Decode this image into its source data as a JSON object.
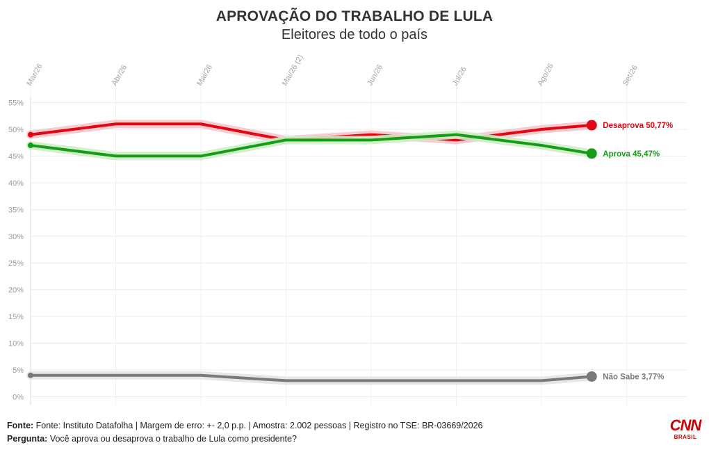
{
  "title": "APROVAÇÃO DO TRABALHO DE LULA",
  "subtitle": "Eleitores de todo o país",
  "footer": {
    "source_label": "Fonte:",
    "source_text": " Fonte: Instituto Datafolha | Margem de erro: +- 2,0 p.p. | Amostra: 2.002 pessoas | Registro no TSE: BR-03669/2026",
    "question_label": "Pergunta:",
    "question_text": " Você aprova ou desaprova o trabalho de Lula como presidente?"
  },
  "logo": {
    "main": "CNN",
    "sub": "BRASIL"
  },
  "chart_data": {
    "type": "line",
    "title": "APROVAÇÃO DO TRABALHO DE LULA",
    "subtitle": "Eleitores de todo o país",
    "x": [
      "Mar/26",
      "Abr/26",
      "Mai/26",
      "Mai/26 (2)",
      "Jun/26",
      "Jul/26",
      "Ago/26",
      "Set/26"
    ],
    "y_ticks": [
      "0%",
      "5%",
      "10%",
      "15%",
      "20%",
      "25%",
      "30%",
      "35%",
      "40%",
      "45%",
      "50%",
      "55%"
    ],
    "ylim": [
      0,
      55
    ],
    "grid": true,
    "series": [
      {
        "name": "Desaprova",
        "end_label": "Desaprova 50,77%",
        "color": "#e30613",
        "glow": "#f6c6cb",
        "values": [
          49,
          51,
          51,
          48,
          49,
          48,
          50,
          50.77
        ]
      },
      {
        "name": "Aprova",
        "end_label": "Aprova 45,47%",
        "color": "#179c18",
        "glow": "#cdeec5",
        "values": [
          47,
          45,
          45,
          48,
          48,
          49,
          47,
          45.47
        ]
      },
      {
        "name": "Não Sabe",
        "end_label": "Não Sabe 3,77%",
        "color": "#7a7a7a",
        "glow": "#e4e4e4",
        "values": [
          4,
          4,
          4,
          3,
          3,
          3,
          3,
          3.77
        ]
      }
    ]
  }
}
